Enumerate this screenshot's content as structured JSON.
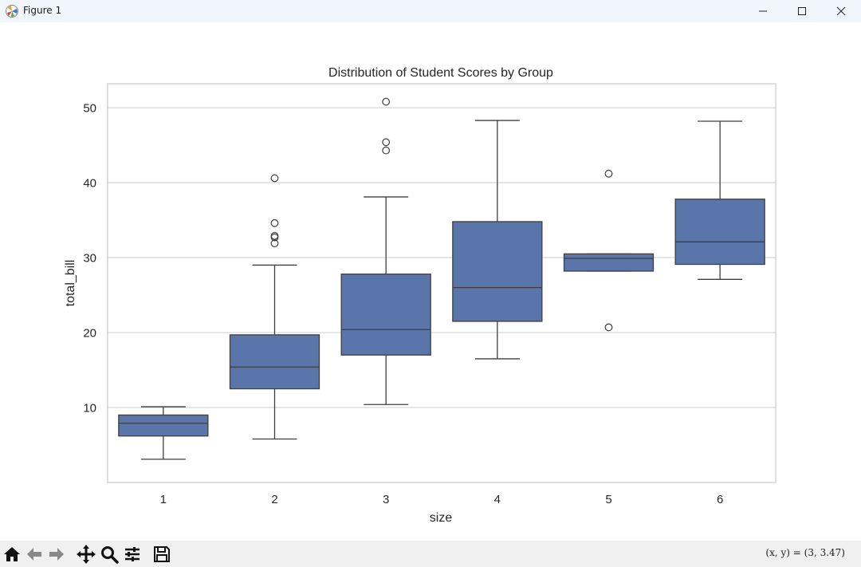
{
  "window": {
    "title": "Figure 1",
    "icon": "matplotlib-icon"
  },
  "window_controls": {
    "minimize": "minimize-icon",
    "maximize": "maximize-icon",
    "close": "close-icon"
  },
  "toolbar": {
    "tools": [
      "home-icon",
      "back-icon",
      "forward-icon",
      "pan-icon",
      "zoom-icon",
      "configure-subplots-icon",
      "save-icon"
    ],
    "coords_text": "(x, y) = (3, 3.47)"
  },
  "colors": {
    "box_fill": "#5975a9",
    "line": "#3f3f3f",
    "grid": "#cccccc",
    "axes_edge": "#cccccc"
  },
  "chart_data": {
    "type": "box",
    "title": "Distribution of Student Scores by Group",
    "xlabel": "size",
    "ylabel": "total_bill",
    "categories": [
      "1",
      "2",
      "3",
      "4",
      "5",
      "6"
    ],
    "yticks": [
      10,
      20,
      30,
      40,
      50
    ],
    "ylim": [
      0.0,
      53.2
    ],
    "grid": "horizontal",
    "boxes": [
      {
        "category": "1",
        "whisker_low": 3.1,
        "q1": 6.2,
        "median": 7.9,
        "q3": 9.0,
        "whisker_high": 10.1,
        "outliers": []
      },
      {
        "category": "2",
        "whisker_low": 5.8,
        "q1": 12.5,
        "median": 15.4,
        "q3": 19.7,
        "whisker_high": 29.0,
        "outliers": [
          31.9,
          32.7,
          32.9,
          34.6,
          40.6
        ]
      },
      {
        "category": "3",
        "whisker_low": 10.4,
        "q1": 17.0,
        "median": 20.4,
        "q3": 27.8,
        "whisker_high": 38.1,
        "outliers": [
          44.3,
          45.4,
          50.8
        ]
      },
      {
        "category": "4",
        "whisker_low": 16.5,
        "q1": 21.5,
        "median": 26.0,
        "q3": 34.8,
        "whisker_high": 48.3,
        "outliers": []
      },
      {
        "category": "5",
        "whisker_low": 28.2,
        "q1": 28.2,
        "median": 29.9,
        "q3": 30.5,
        "whisker_high": 30.5,
        "outliers": [
          20.7,
          41.2
        ]
      },
      {
        "category": "6",
        "whisker_low": 27.1,
        "q1": 29.1,
        "median": 32.1,
        "q3": 37.8,
        "whisker_high": 48.2,
        "outliers": []
      }
    ]
  }
}
